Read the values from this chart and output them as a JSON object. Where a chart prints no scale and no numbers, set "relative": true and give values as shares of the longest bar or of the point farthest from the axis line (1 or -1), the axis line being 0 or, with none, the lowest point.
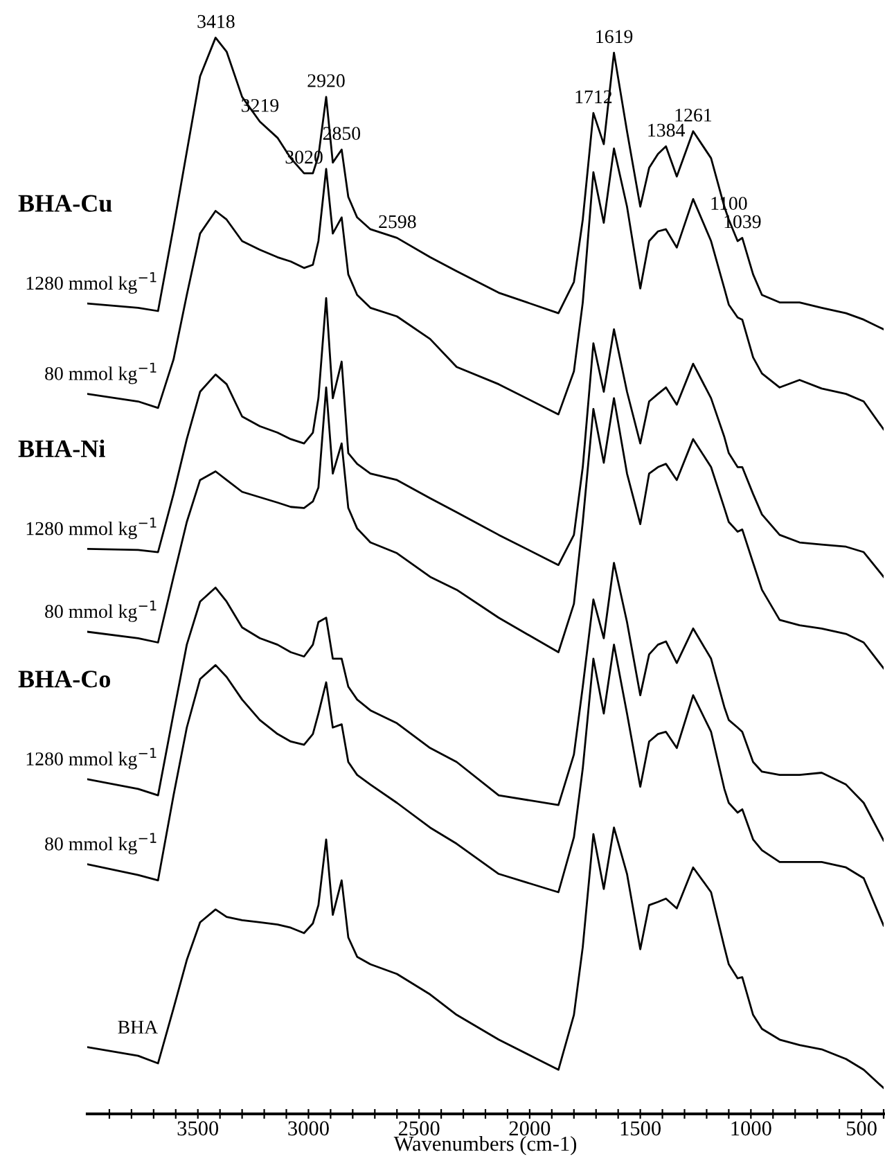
{
  "chart_data": {
    "type": "line",
    "relative": true,
    "xlabel": "Wavenumbers (cm-1)",
    "xlim": [
      4000,
      400
    ],
    "xticks": [
      {
        "value": 3900,
        "label": null
      },
      {
        "value": 3800,
        "label": null
      },
      {
        "value": 3700,
        "label": null
      },
      {
        "value": 3600,
        "label": null
      },
      3500,
      {
        "value": 3400,
        "label": null
      },
      {
        "value": 3300,
        "label": null
      },
      {
        "value": 3200,
        "label": null
      },
      {
        "value": 3100,
        "label": null
      },
      3000,
      {
        "value": 2900,
        "label": null
      },
      {
        "value": 2800,
        "label": null
      },
      {
        "value": 2700,
        "label": null
      },
      {
        "value": 2600,
        "label": null
      },
      2500,
      {
        "value": 2400,
        "label": null
      },
      {
        "value": 2300,
        "label": null
      },
      {
        "value": 2200,
        "label": null
      },
      {
        "value": 2100,
        "label": null
      },
      2000,
      {
        "value": 1900,
        "label": null
      },
      {
        "value": 1800,
        "label": null
      },
      {
        "value": 1700,
        "label": null
      },
      {
        "value": 1600,
        "label": null
      },
      1500,
      {
        "value": 1400,
        "label": null
      },
      {
        "value": 1300,
        "label": null
      },
      {
        "value": 1200,
        "label": null
      },
      {
        "value": 1100,
        "label": null
      },
      1000,
      {
        "value": 900,
        "label": null
      },
      {
        "value": 800,
        "label": null
      },
      {
        "value": 700,
        "label": null
      },
      {
        "value": 600,
        "label": null
      },
      500,
      {
        "value": 400,
        "label": null
      }
    ],
    "x": [
      4000,
      3770,
      3680,
      3610,
      3550,
      3490,
      3420,
      3370,
      3300,
      3220,
      3140,
      3080,
      3020,
      2980,
      2955,
      2920,
      2890,
      2850,
      2820,
      2780,
      2720,
      2600,
      2450,
      2330,
      2140,
      1870,
      1800,
      1760,
      1712,
      1665,
      1619,
      1560,
      1500,
      1460,
      1420,
      1384,
      1335,
      1261,
      1180,
      1120,
      1100,
      1060,
      1039,
      990,
      950,
      870,
      780,
      680,
      570,
      490,
      400
    ],
    "series": [
      {
        "name": "1280 mmol kg$^{−1}$",
        "color": "#000000",
        "values": [
          0.753,
          0.749,
          0.746,
          0.824,
          0.894,
          0.964,
          1.0,
          0.987,
          0.945,
          0.922,
          0.907,
          0.888,
          0.874,
          0.874,
          0.89,
          0.945,
          0.884,
          0.896,
          0.852,
          0.833,
          0.822,
          0.814,
          0.796,
          0.783,
          0.763,
          0.744,
          0.773,
          0.831,
          0.93,
          0.901,
          0.986,
          0.913,
          0.843,
          0.879,
          0.892,
          0.899,
          0.871,
          0.913,
          0.888,
          0.843,
          0.831,
          0.811,
          0.814,
          0.78,
          0.761,
          0.754,
          0.754,
          0.749,
          0.744,
          0.738,
          0.729
        ]
      },
      {
        "name": "80 mmol kg$^{−1}$",
        "color": "#000000",
        "values": [
          0.669,
          0.662,
          0.656,
          0.701,
          0.761,
          0.818,
          0.839,
          0.831,
          0.811,
          0.803,
          0.796,
          0.792,
          0.786,
          0.789,
          0.811,
          0.878,
          0.818,
          0.833,
          0.78,
          0.761,
          0.749,
          0.741,
          0.72,
          0.694,
          0.678,
          0.65,
          0.69,
          0.754,
          0.875,
          0.828,
          0.897,
          0.843,
          0.767,
          0.811,
          0.82,
          0.822,
          0.805,
          0.85,
          0.811,
          0.767,
          0.752,
          0.74,
          0.738,
          0.703,
          0.688,
          0.675,
          0.682,
          0.674,
          0.669,
          0.662,
          0.636
        ]
      },
      {
        "name": "1280 mmol kg$^{−1}$",
        "color": "#000000",
        "values": [
          0.525,
          0.524,
          0.522,
          0.576,
          0.627,
          0.671,
          0.687,
          0.678,
          0.648,
          0.639,
          0.633,
          0.627,
          0.623,
          0.633,
          0.665,
          0.758,
          0.665,
          0.699,
          0.614,
          0.604,
          0.595,
          0.589,
          0.572,
          0.559,
          0.538,
          0.51,
          0.538,
          0.601,
          0.716,
          0.671,
          0.729,
          0.671,
          0.623,
          0.662,
          0.669,
          0.675,
          0.659,
          0.697,
          0.665,
          0.629,
          0.614,
          0.601,
          0.601,
          0.576,
          0.557,
          0.538,
          0.531,
          0.529,
          0.527,
          0.522,
          0.499
        ]
      },
      {
        "name": "80 mmol kg$^{−1}$",
        "color": "#000000",
        "values": [
          0.448,
          0.442,
          0.438,
          0.499,
          0.55,
          0.589,
          0.597,
          0.589,
          0.578,
          0.573,
          0.568,
          0.564,
          0.563,
          0.569,
          0.582,
          0.675,
          0.595,
          0.623,
          0.563,
          0.544,
          0.531,
          0.521,
          0.499,
          0.487,
          0.461,
          0.429,
          0.474,
          0.55,
          0.655,
          0.605,
          0.665,
          0.595,
          0.548,
          0.595,
          0.601,
          0.604,
          0.589,
          0.627,
          0.601,
          0.563,
          0.55,
          0.541,
          0.543,
          0.512,
          0.487,
          0.459,
          0.454,
          0.451,
          0.446,
          0.438,
          0.414
        ]
      },
      {
        "name": "1280 mmol kg$^{−1}$",
        "color": "#000000",
        "values": [
          0.311,
          0.302,
          0.296,
          0.372,
          0.436,
          0.476,
          0.489,
          0.476,
          0.452,
          0.442,
          0.436,
          0.429,
          0.425,
          0.436,
          0.457,
          0.461,
          0.423,
          0.423,
          0.397,
          0.385,
          0.375,
          0.363,
          0.34,
          0.327,
          0.296,
          0.287,
          0.334,
          0.397,
          0.478,
          0.442,
          0.512,
          0.457,
          0.389,
          0.427,
          0.436,
          0.439,
          0.419,
          0.451,
          0.423,
          0.378,
          0.366,
          0.359,
          0.355,
          0.327,
          0.318,
          0.315,
          0.315,
          0.317,
          0.306,
          0.289,
          0.254
        ]
      },
      {
        "name": "80 mmol kg$^{−1}$",
        "color": "#000000",
        "values": [
          0.232,
          0.222,
          0.217,
          0.296,
          0.359,
          0.404,
          0.417,
          0.406,
          0.385,
          0.366,
          0.353,
          0.346,
          0.343,
          0.353,
          0.372,
          0.401,
          0.359,
          0.362,
          0.327,
          0.315,
          0.306,
          0.289,
          0.266,
          0.251,
          0.223,
          0.206,
          0.257,
          0.321,
          0.423,
          0.372,
          0.436,
          0.372,
          0.304,
          0.346,
          0.353,
          0.355,
          0.34,
          0.389,
          0.355,
          0.302,
          0.289,
          0.28,
          0.283,
          0.255,
          0.245,
          0.234,
          0.234,
          0.234,
          0.229,
          0.219,
          0.175
        ]
      },
      {
        "name": "BHA",
        "color": "#000000",
        "values": [
          0.062,
          0.054,
          0.047,
          0.098,
          0.143,
          0.178,
          0.19,
          0.183,
          0.18,
          0.178,
          0.176,
          0.173,
          0.168,
          0.177,
          0.194,
          0.255,
          0.185,
          0.217,
          0.164,
          0.146,
          0.139,
          0.13,
          0.111,
          0.092,
          0.069,
          0.041,
          0.092,
          0.155,
          0.26,
          0.209,
          0.266,
          0.223,
          0.153,
          0.194,
          0.197,
          0.2,
          0.191,
          0.229,
          0.206,
          0.155,
          0.139,
          0.126,
          0.127,
          0.092,
          0.079,
          0.069,
          0.064,
          0.06,
          0.051,
          0.041,
          0.024
        ]
      }
    ],
    "annotations": [
      "BHA-Cu",
      "BHA-Ni",
      "BHA-Co",
      {
        "text": "3418",
        "x": 3418,
        "y": 1.0
      },
      {
        "text": "3219",
        "x": 3219,
        "y": 0.922
      },
      {
        "text": "3020",
        "x": 3020,
        "y": 0.874
      },
      {
        "text": "2920",
        "x": 2920,
        "y": 0.945
      },
      {
        "text": "2850",
        "x": 2850,
        "y": 0.896
      },
      {
        "text": "2598",
        "x": 2598,
        "y": 0.814
      },
      {
        "text": "1712",
        "x": 1712,
        "y": 0.93
      },
      {
        "text": "1619",
        "x": 1619,
        "y": 0.986
      },
      {
        "text": "1384",
        "x": 1384,
        "y": 0.899
      },
      {
        "text": "1261",
        "x": 1261,
        "y": 0.913
      },
      {
        "text": "1100",
        "x": 1100,
        "y": 0.831
      },
      {
        "text": "1039",
        "x": 1039,
        "y": 0.814
      }
    ]
  }
}
